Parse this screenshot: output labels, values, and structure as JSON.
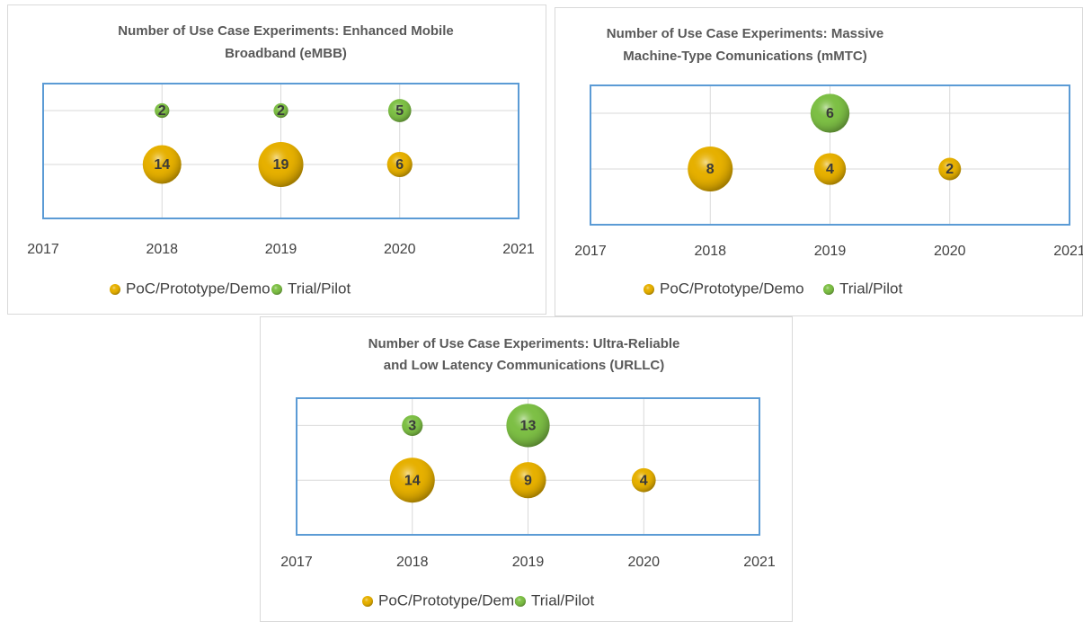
{
  "chart_data": [
    {
      "type": "bubble",
      "title": [
        "Number of Use Case Experiments: Enhanced Mobile",
        "Broadband (eMBB)"
      ],
      "xlim": [
        2017,
        2021
      ],
      "xticks": [
        2017,
        2018,
        2019,
        2020,
        2021
      ],
      "ylim": [
        0,
        2.5
      ],
      "yticks": [
        1,
        2
      ],
      "grid": true,
      "series": [
        {
          "name": "PoC/Prototype/Demo",
          "color": "#e6b000",
          "x": [
            2018,
            2019,
            2020
          ],
          "values": [
            1,
            1,
            1
          ],
          "sizes": [
            14,
            19,
            6
          ]
        },
        {
          "name": "Trial/Pilot",
          "color": "#7dbf45",
          "x": [
            2018,
            2019,
            2020
          ],
          "values": [
            2,
            2,
            2
          ],
          "sizes": [
            2,
            2,
            5
          ]
        }
      ]
    },
    {
      "type": "bubble",
      "title": [
        "Number of Use Case Experiments: Massive",
        "Machine-Type Comunications (mMTC)"
      ],
      "xlim": [
        2017,
        2021
      ],
      "xticks": [
        2017,
        2018,
        2019,
        2020,
        2021
      ],
      "ylim": [
        0,
        2.5
      ],
      "yticks": [
        1,
        2
      ],
      "grid": true,
      "series": [
        {
          "name": "PoC/Prototype/Demo",
          "color": "#e6b000",
          "x": [
            2018,
            2019,
            2020
          ],
          "values": [
            1,
            1,
            1
          ],
          "sizes": [
            8,
            4,
            2
          ]
        },
        {
          "name": "Trial/Pilot",
          "color": "#7dbf45",
          "x": [
            2019
          ],
          "values": [
            2
          ],
          "sizes": [
            6
          ]
        }
      ]
    },
    {
      "type": "bubble",
      "title": [
        "Number of Use Case Experiments: Ultra-Reliable",
        "and Low Latency Communications (URLLC)"
      ],
      "xlim": [
        2017,
        2021
      ],
      "xticks": [
        2017,
        2018,
        2019,
        2020,
        2021
      ],
      "ylim": [
        0,
        2.5
      ],
      "yticks": [
        1,
        2
      ],
      "grid": true,
      "series": [
        {
          "name": "PoC/Prototype/Demo",
          "color": "#e6b000",
          "x": [
            2018,
            2019,
            2020
          ],
          "values": [
            1,
            1,
            1
          ],
          "sizes": [
            14,
            9,
            4
          ]
        },
        {
          "name": "Trial/Pilot",
          "color": "#7dbf45",
          "x": [
            2018,
            2019
          ],
          "values": [
            2,
            2
          ],
          "sizes": [
            3,
            13
          ]
        }
      ]
    }
  ]
}
